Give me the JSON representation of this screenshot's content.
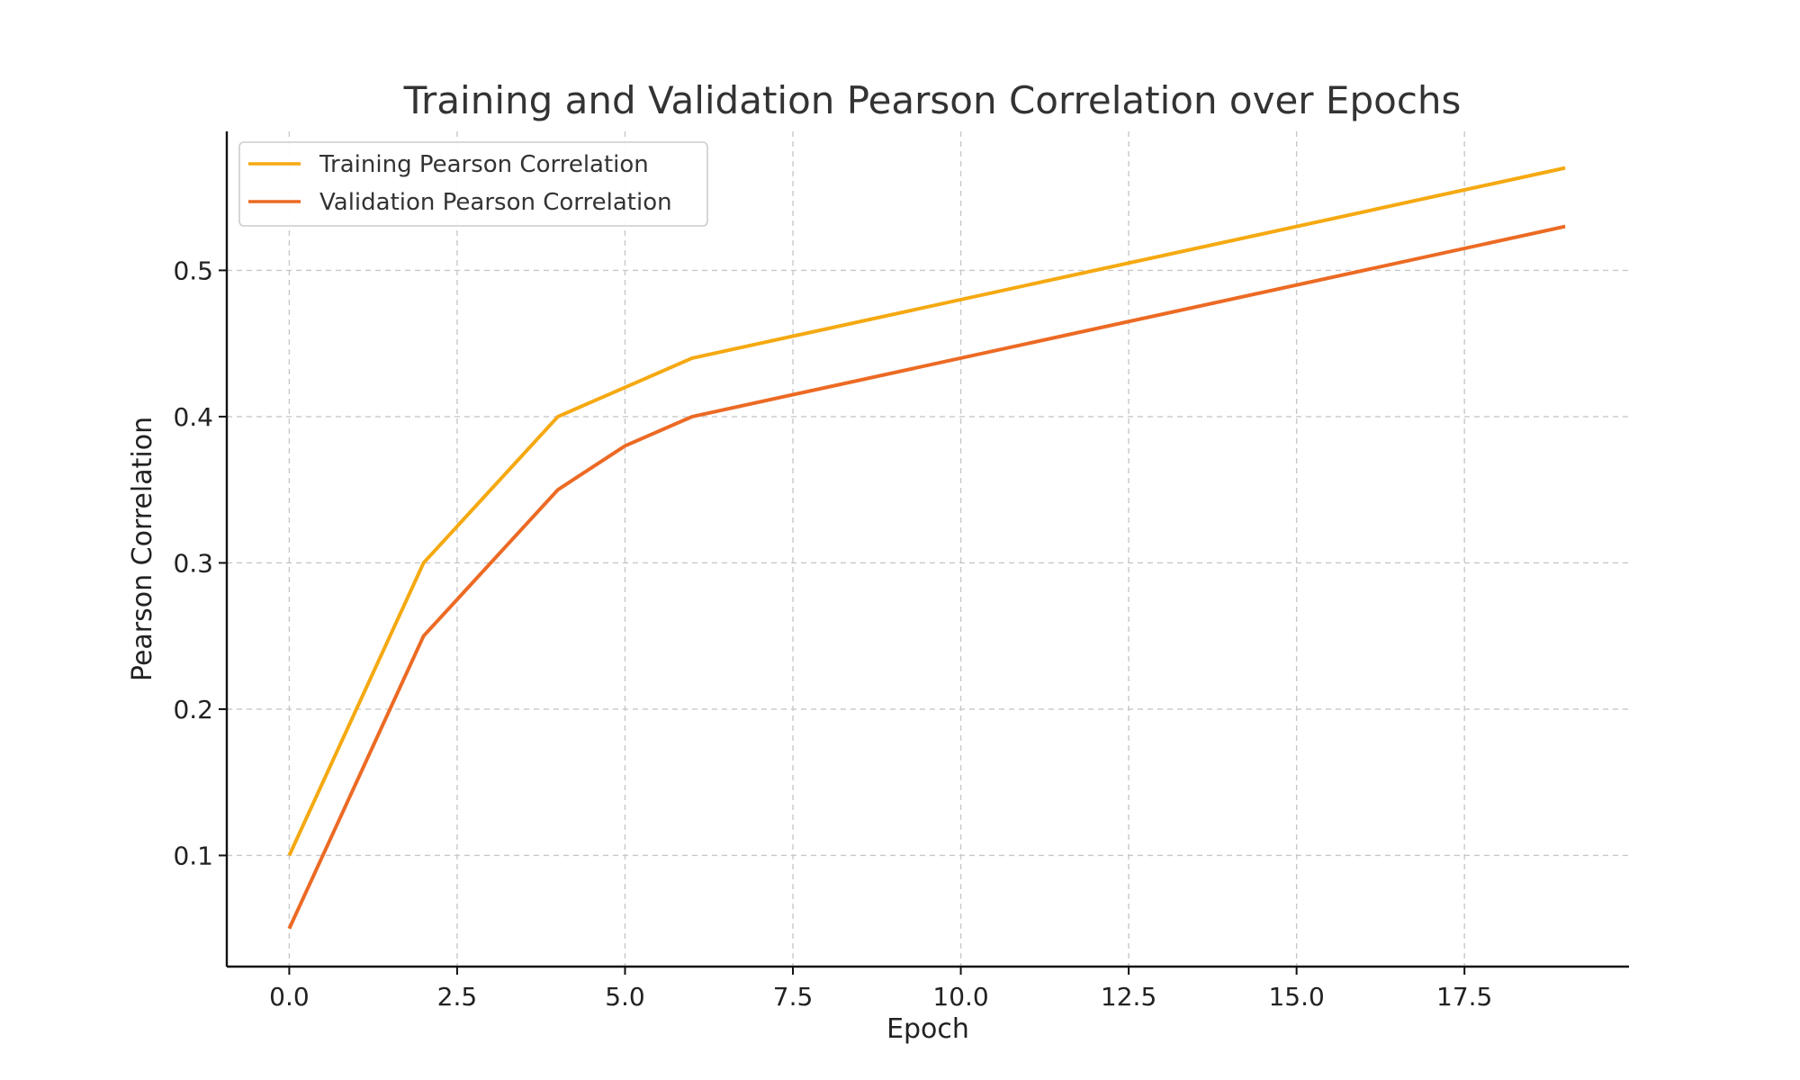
{
  "chart_data": {
    "type": "line",
    "title": "Training and Validation Pearson Correlation over Epochs",
    "xlabel": "Epoch",
    "ylabel": "Pearson Correlation",
    "xlim": [
      -0.93,
      19.95
    ],
    "ylim": [
      0.024,
      0.595
    ],
    "xticks": [
      0.0,
      2.5,
      5.0,
      7.5,
      10.0,
      12.5,
      15.0,
      17.5
    ],
    "xtick_labels": [
      "0.0",
      "2.5",
      "5.0",
      "7.5",
      "10.0",
      "12.5",
      "15.0",
      "17.5"
    ],
    "yticks": [
      0.1,
      0.2,
      0.3,
      0.4,
      0.5
    ],
    "ytick_labels": [
      "0.1",
      "0.2",
      "0.3",
      "0.4",
      "0.5"
    ],
    "grid": true,
    "legend_position": "top-left",
    "x": [
      0,
      2,
      4,
      5,
      6,
      19
    ],
    "series": [
      {
        "name": "Training Pearson Correlation",
        "color": "#f5a911",
        "values": [
          0.1,
          0.3,
          0.4,
          0.42,
          0.44,
          0.57
        ]
      },
      {
        "name": "Validation Pearson Correlation",
        "color": "#ec6a24",
        "values": [
          0.05,
          0.25,
          0.35,
          0.38,
          0.4,
          0.53
        ]
      }
    ]
  }
}
